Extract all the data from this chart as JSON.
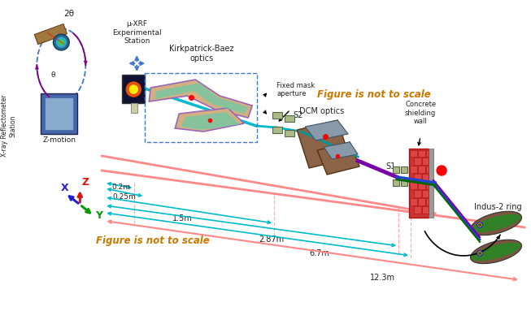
{
  "bg_color": "#ffffff",
  "fig_width": 6.53,
  "fig_height": 3.83,
  "labels": {
    "xray_reflectometer": "X-ray Reflectometer\nStation",
    "zmotion": "Z-motion",
    "two_theta": "2θ",
    "theta": "θ",
    "mu_xrf": "μ-XRF\nExperimental\nStation",
    "kb_optics": "Kirkpatrick-Baez\noptics",
    "fixed_mask": "Fixed mask\naperture",
    "s2": "S2",
    "dcm_optics": "DCM optics",
    "concrete_wall": "Concrete\nshielding\nwall",
    "s1": "S1",
    "indus2": "Indus-2 ring",
    "fig_not_scale_lower": "Figure is not to scale",
    "fig_not_scale_upper": "Figure is not to scale",
    "dist_02": "0.2m",
    "dist_025": "0.25m",
    "dist_15": "1.5m",
    "dist_287": "2.87m",
    "dist_67": "6.7m",
    "dist_123": "12.3m"
  },
  "colors": {
    "beam_pink": "#FF8888",
    "beam_cyan": "#00BBCC",
    "beam_teal": "#009999",
    "wall_red": "#CC3333",
    "wall_brick": "#CC4444",
    "kb_body": "#D4A870",
    "kb_purple": "#9966BB",
    "kb_green": "#66CCAA",
    "mirror_silver": "#AABBAA",
    "dcm_brown": "#8B6347",
    "dcm_gray": "#8899AA",
    "purple_beam": "#7700AA",
    "blue_beam": "#2244CC",
    "green_beam": "#006600",
    "indus_brown": "#7B5540",
    "indus_green": "#228822",
    "xaxis": "#2222CC",
    "yaxis": "#009900",
    "zaxis": "#DD1111",
    "dashed_blue": "#4477CC",
    "fig_not_scale_color": "#CC7700",
    "text_dark": "#222222",
    "cyl_brown": "#A07840"
  }
}
